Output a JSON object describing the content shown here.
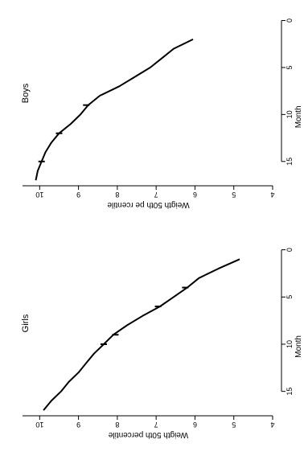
{
  "chart_data": [
    {
      "type": "line",
      "title": "Boys",
      "xlabel": "Month",
      "ylabel": "Weigth 50th pe rcentile",
      "xlim": [
        -1.5,
        17.5
      ],
      "ylim": [
        4,
        10.4
      ],
      "x_ticks": [
        0,
        5,
        10,
        15
      ],
      "y_ticks": [
        4,
        5,
        6,
        7,
        8,
        9,
        10
      ],
      "rotated": "90deg-clockwise",
      "series": [
        {
          "x": [
            2,
            3,
            4,
            5,
            6,
            7,
            8,
            9,
            10,
            11,
            12,
            13,
            14,
            15,
            16,
            17
          ],
          "values": [
            6.05,
            6.55,
            6.85,
            7.15,
            7.55,
            7.95,
            8.45,
            8.75,
            8.95,
            9.2,
            9.5,
            9.7,
            9.85,
            9.95,
            10.05,
            10.1
          ]
        }
      ],
      "markers": [
        {
          "x": 9,
          "y": 8.8
        },
        {
          "x": 12,
          "y": 9.5
        },
        {
          "x": 15,
          "y": 9.95
        }
      ]
    },
    {
      "type": "line",
      "title": "Girls",
      "xlabel": "Month",
      "ylabel": "Weigth 50th percentile",
      "xlim": [
        -1.5,
        17.5
      ],
      "ylim": [
        4,
        10.4
      ],
      "x_ticks": [
        0,
        5,
        10,
        15
      ],
      "y_ticks": [
        4,
        5,
        6,
        7,
        8,
        9,
        10
      ],
      "rotated": "90deg-clockwise",
      "series": [
        {
          "x": [
            1,
            2,
            3,
            4,
            5,
            6,
            7,
            8,
            9,
            10,
            11,
            12,
            13,
            14,
            15,
            16,
            17
          ],
          "values": [
            4.85,
            5.4,
            5.9,
            6.2,
            6.55,
            6.9,
            7.35,
            7.75,
            8.1,
            8.35,
            8.6,
            8.8,
            9.0,
            9.25,
            9.45,
            9.7,
            9.9
          ]
        }
      ],
      "markers": [
        {
          "x": 4,
          "y": 6.25
        },
        {
          "x": 6,
          "y": 6.95
        },
        {
          "x": 9,
          "y": 8.05
        },
        {
          "x": 10,
          "y": 8.35
        }
      ]
    }
  ]
}
